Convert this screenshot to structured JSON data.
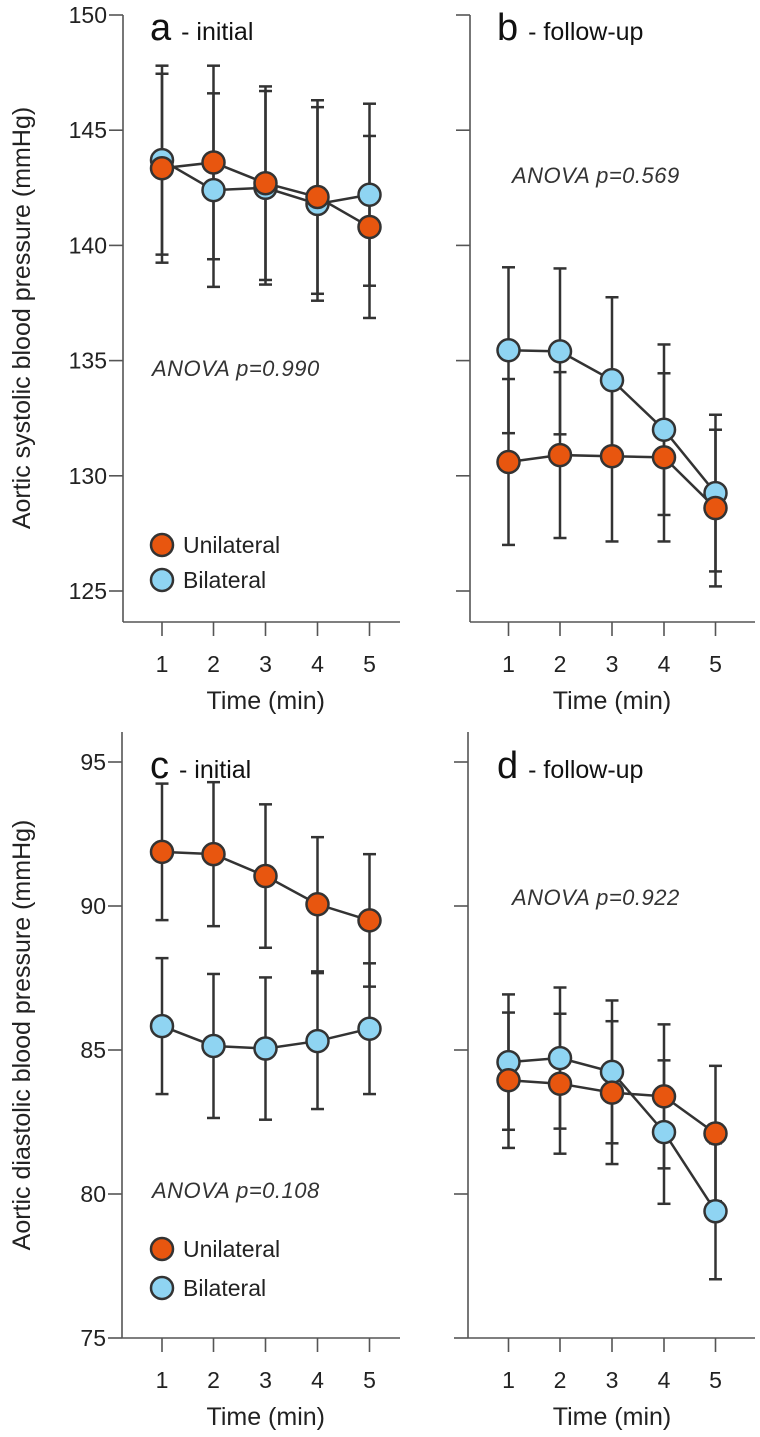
{
  "colors": {
    "unilateral": "#e8560f",
    "bilateral": "#8fd4f2",
    "stroke": "#333333",
    "axis": "#555555"
  },
  "chart_data": [
    {
      "type": "line",
      "title_letter": "a",
      "title_text": "- initial",
      "xlabel": "Time (min)",
      "ylabel": "Aortic systolic blood pressure (mmHg)",
      "x": [
        1,
        2,
        3,
        4,
        5
      ],
      "xticks": [
        "1",
        "2",
        "3",
        "4",
        "5"
      ],
      "ylim": [
        125,
        150
      ],
      "yticks": [
        "125",
        "130",
        "135",
        "140",
        "145",
        "150"
      ],
      "ytick_values": [
        125,
        130,
        135,
        140,
        145,
        150
      ],
      "annotation": "ANOVA p=0.990",
      "legend": [
        "Unilateral",
        "Bilateral"
      ],
      "legend_placement": "bottom-left",
      "series": [
        {
          "name": "Bilateral",
          "values": [
            143.7,
            142.4,
            142.5,
            141.8,
            142.2
          ],
          "errors": [
            4.1,
            4.2,
            4.2,
            4.2,
            3.95
          ]
        },
        {
          "name": "Unilateral",
          "values": [
            143.35,
            143.6,
            142.7,
            142.1,
            140.8
          ],
          "errors": [
            4.1,
            4.2,
            4.2,
            4.2,
            3.95
          ]
        }
      ]
    },
    {
      "type": "line",
      "title_letter": "b",
      "title_text": "- follow-up",
      "xlabel": "Time (min)",
      "ylabel": "",
      "x": [
        1,
        2,
        3,
        4,
        5
      ],
      "xticks": [
        "1",
        "2",
        "3",
        "4",
        "5"
      ],
      "ylim": [
        125,
        150
      ],
      "yticks": [],
      "ytick_values": [
        125,
        130,
        135,
        140,
        145,
        150
      ],
      "annotation": "ANOVA p=0.569",
      "legend": [],
      "series": [
        {
          "name": "Bilateral",
          "values": [
            135.45,
            135.4,
            134.15,
            132.0,
            129.25
          ],
          "errors": [
            3.6,
            3.6,
            3.6,
            3.7,
            3.4
          ]
        },
        {
          "name": "Unilateral",
          "values": [
            130.6,
            130.9,
            130.85,
            130.8,
            128.6
          ],
          "errors": [
            3.6,
            3.6,
            3.7,
            3.65,
            3.4
          ]
        }
      ]
    },
    {
      "type": "line",
      "title_letter": "c",
      "title_text": "- initial",
      "xlabel": "Time (min)",
      "ylabel": "Aortic diastolic blood pressure (mmHg)",
      "x": [
        1,
        2,
        3,
        4,
        5
      ],
      "xticks": [
        "1",
        "2",
        "3",
        "4",
        "5"
      ],
      "ylim": [
        75,
        95
      ],
      "yticks": [
        "75",
        "80",
        "85",
        "90",
        "95"
      ],
      "ytick_values": [
        75,
        80,
        85,
        90,
        95
      ],
      "annotation": "ANOVA p=0.108",
      "legend": [
        "Unilateral",
        "Bilateral"
      ],
      "legend_placement": "bottom-left",
      "series": [
        {
          "name": "Bilateral",
          "values": [
            85.83,
            85.14,
            85.05,
            85.31,
            85.74
          ],
          "errors": [
            2.36,
            2.5,
            2.47,
            2.36,
            2.27
          ]
        },
        {
          "name": "Unilateral",
          "values": [
            91.88,
            91.8,
            91.04,
            90.06,
            89.5
          ],
          "errors": [
            2.37,
            2.5,
            2.49,
            2.33,
            2.3
          ]
        }
      ]
    },
    {
      "type": "line",
      "title_letter": "d",
      "title_text": "- follow-up",
      "xlabel": "Time (min)",
      "ylabel": "",
      "x": [
        1,
        2,
        3,
        4,
        5
      ],
      "xticks": [
        "1",
        "2",
        "3",
        "4",
        "5"
      ],
      "ylim": [
        75,
        95
      ],
      "yticks": [],
      "ytick_values": [
        75,
        80,
        85,
        90,
        95
      ],
      "annotation": "ANOVA p=0.922",
      "legend": [],
      "series": [
        {
          "name": "Bilateral",
          "values": [
            84.58,
            84.72,
            84.24,
            82.15,
            79.4
          ],
          "errors": [
            2.35,
            2.45,
            2.48,
            2.49,
            2.36
          ]
        },
        {
          "name": "Unilateral",
          "values": [
            83.95,
            83.83,
            83.52,
            83.39,
            82.1
          ],
          "errors": [
            2.35,
            2.43,
            2.48,
            2.5,
            2.35
          ]
        }
      ]
    }
  ]
}
